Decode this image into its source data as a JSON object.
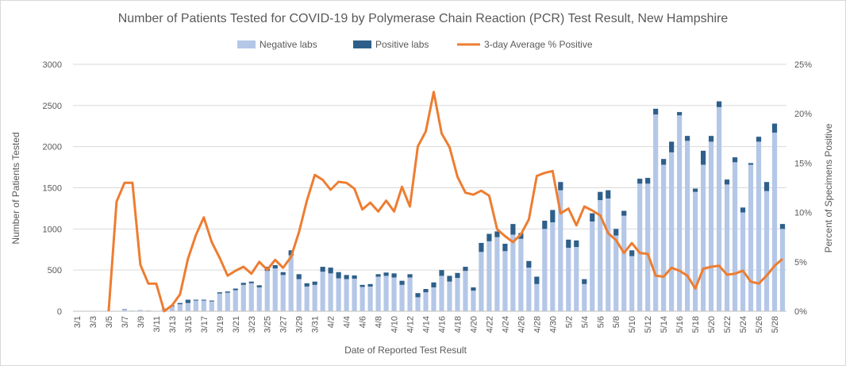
{
  "chart_data": {
    "type": "bar",
    "title": "Number of Patients Tested for COVID-19 by Polymerase Chain Reaction (PCR) Test Result, New Hampshire",
    "xlabel": "Date of Reported Test Result",
    "ylabel": "Number of Patients Tested",
    "y2label": "Percent of Specimens Positive",
    "ylim": [
      0,
      3000
    ],
    "y2lim": [
      0,
      25
    ],
    "yticks": [
      "0",
      "500",
      "1000",
      "1500",
      "2000",
      "2500",
      "3000"
    ],
    "y2ticks": [
      "0%",
      "5%",
      "10%",
      "15%",
      "20%",
      "25%"
    ],
    "grid": "horizontal",
    "legend_position": "top",
    "categories": [
      "3/1",
      "3/2",
      "3/3",
      "3/4",
      "3/5",
      "3/6",
      "3/7",
      "3/8",
      "3/9",
      "3/10",
      "3/11",
      "3/12",
      "3/13",
      "3/14",
      "3/15",
      "3/16",
      "3/17",
      "3/18",
      "3/19",
      "3/20",
      "3/21",
      "3/22",
      "3/23",
      "3/24",
      "3/25",
      "3/26",
      "3/27",
      "3/28",
      "3/29",
      "3/30",
      "3/31",
      "4/1",
      "4/2",
      "4/3",
      "4/4",
      "4/5",
      "4/6",
      "4/7",
      "4/8",
      "4/9",
      "4/10",
      "4/11",
      "4/12",
      "4/13",
      "4/14",
      "4/15",
      "4/16",
      "4/17",
      "4/18",
      "4/19",
      "4/20",
      "4/21",
      "4/22",
      "4/23",
      "4/24",
      "4/25",
      "4/26",
      "4/27",
      "4/28",
      "4/29",
      "4/30",
      "5/1",
      "5/2",
      "5/3",
      "5/4",
      "5/5",
      "5/6",
      "5/7",
      "5/8",
      "5/9",
      "5/10",
      "5/11",
      "5/12",
      "5/13",
      "5/14",
      "5/15",
      "5/16",
      "5/17",
      "5/18",
      "5/19",
      "5/20",
      "5/21",
      "5/22",
      "5/23",
      "5/24",
      "5/25",
      "5/26",
      "5/27",
      "5/28",
      "5/29"
    ],
    "series": [
      {
        "name": "Negative labs",
        "kind": "bar",
        "color": "#b4c7e7",
        "values": [
          0,
          0,
          0,
          0,
          0,
          0,
          20,
          5,
          10,
          8,
          5,
          30,
          60,
          85,
          100,
          130,
          130,
          120,
          215,
          225,
          255,
          320,
          340,
          290,
          490,
          520,
          440,
          680,
          390,
          300,
          320,
          480,
          460,
          400,
          390,
          395,
          295,
          300,
          420,
          430,
          410,
          320,
          410,
          170,
          230,
          290,
          430,
          360,
          405,
          490,
          250,
          720,
          850,
          900,
          730,
          930,
          880,
          530,
          330,
          1000,
          1080,
          1470,
          770,
          780,
          330,
          1090,
          1350,
          1370,
          920,
          1160,
          670,
          1550,
          1550,
          2390,
          1780,
          1930,
          2380,
          2070,
          1450,
          1780,
          2060,
          2480,
          1540,
          1810,
          1200,
          1780,
          2060,
          1460,
          2170,
          1000
        ]
      },
      {
        "name": "Positive labs",
        "kind": "bar",
        "color": "#2e5f8a",
        "values": [
          0,
          0,
          0,
          0,
          0,
          0,
          5,
          1,
          2,
          1,
          0,
          3,
          10,
          15,
          40,
          10,
          10,
          10,
          15,
          15,
          20,
          25,
          20,
          25,
          50,
          40,
          35,
          60,
          60,
          40,
          40,
          60,
          70,
          75,
          50,
          40,
          25,
          30,
          30,
          40,
          50,
          50,
          40,
          50,
          40,
          60,
          70,
          70,
          60,
          50,
          40,
          110,
          90,
          70,
          90,
          130,
          70,
          80,
          90,
          100,
          150,
          100,
          100,
          80,
          60,
          100,
          100,
          100,
          80,
          60,
          70,
          60,
          70,
          70,
          70,
          130,
          40,
          60,
          40,
          170,
          70,
          70,
          60,
          60,
          60,
          20,
          60,
          110,
          110,
          60
        ]
      },
      {
        "name": "3-day Average % Positive",
        "kind": "line",
        "color": "#ed7d31",
        "values": [
          null,
          null,
          null,
          null,
          0,
          11.1,
          13,
          13,
          4.7,
          2.8,
          2.8,
          0,
          0.6,
          1.7,
          5.3,
          7.7,
          9.5,
          7,
          5.4,
          3.6,
          4.1,
          4.5,
          3.8,
          5,
          4.2,
          5.2,
          4.4,
          5.5,
          8,
          11.2,
          13.8,
          13.3,
          12.3,
          13.1,
          13,
          12.4,
          10.3,
          11,
          10.1,
          11.2,
          10.1,
          12.6,
          10.6,
          16.7,
          18.2,
          22.2,
          18,
          16.6,
          13.6,
          12,
          11.8,
          12.2,
          11.7,
          8.3,
          7.6,
          7,
          7.8,
          9.3,
          13.7,
          14,
          14.2,
          9.9,
          10.4,
          8.7,
          10.6,
          10.2,
          9.7,
          7.9,
          7.2,
          5.9,
          6.9,
          5.9,
          5.8,
          3.6,
          3.5,
          4.4,
          4.1,
          3.6,
          2.3,
          4.3,
          4.5,
          4.6,
          3.7,
          3.8,
          4.1,
          3,
          2.8,
          3.6,
          4.6,
          5.3
        ]
      }
    ]
  }
}
